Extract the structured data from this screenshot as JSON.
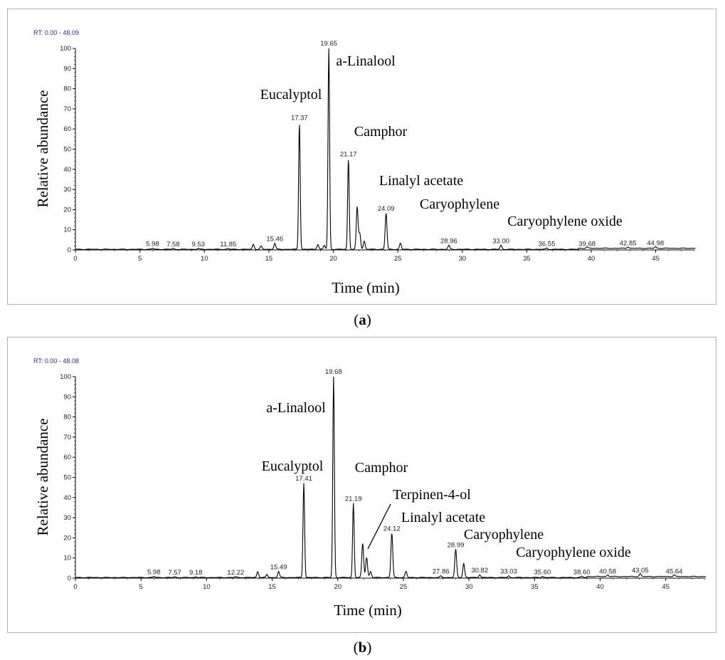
{
  "chart_data": [
    {
      "type": "line",
      "panel_label": "a",
      "range_label": "RT: 0.00 - 48.09",
      "xlabel": "Time (min)",
      "ylabel": "Relative abundance",
      "xlim": [
        0,
        48.09
      ],
      "ylim": [
        0,
        100
      ],
      "x_ticks": [
        0,
        5,
        10,
        15,
        20,
        25,
        30,
        35,
        40,
        45
      ],
      "y_ticks": [
        0,
        10,
        20,
        30,
        40,
        50,
        60,
        70,
        80,
        90,
        100
      ],
      "peaks": [
        {
          "rt": 5.98,
          "height": 0.5,
          "label": "5.98"
        },
        {
          "rt": 7.58,
          "height": 0.4,
          "label": "7.58"
        },
        {
          "rt": 9.53,
          "height": 0.4,
          "label": "9.53"
        },
        {
          "rt": 11.85,
          "height": 0.4,
          "label": "11.85"
        },
        {
          "rt": 13.8,
          "height": 2.5,
          "label": ""
        },
        {
          "rt": 14.4,
          "height": 1.5,
          "label": ""
        },
        {
          "rt": 15.46,
          "height": 3,
          "label": "15.46"
        },
        {
          "rt": 17.37,
          "height": 63,
          "label": "17.37"
        },
        {
          "rt": 18.8,
          "height": 2.5,
          "label": ""
        },
        {
          "rt": 19.3,
          "height": 2,
          "label": ""
        },
        {
          "rt": 19.65,
          "height": 100,
          "label": "19.65"
        },
        {
          "rt": 21.17,
          "height": 45,
          "label": "21.17"
        },
        {
          "rt": 21.85,
          "height": 21,
          "label": ""
        },
        {
          "rt": 22.05,
          "height": 8,
          "label": ""
        },
        {
          "rt": 22.4,
          "height": 4,
          "label": ""
        },
        {
          "rt": 24.09,
          "height": 18,
          "label": "24.09"
        },
        {
          "rt": 25.2,
          "height": 3,
          "label": ""
        },
        {
          "rt": 28.96,
          "height": 2,
          "label": "28.96"
        },
        {
          "rt": 33.0,
          "height": 2,
          "label": "33.00"
        },
        {
          "rt": 36.55,
          "height": 0.6,
          "label": "36.55"
        },
        {
          "rt": 39.68,
          "height": 0.6,
          "label": "39.68"
        },
        {
          "rt": 42.85,
          "height": 0.8,
          "label": "42.85"
        },
        {
          "rt": 44.98,
          "height": 0.8,
          "label": "44.98"
        }
      ],
      "annotations": [
        {
          "text": "Eucalyptol",
          "rt": 17.37
        },
        {
          "text": "a-Linalool",
          "rt": 19.65
        },
        {
          "text": "Camphor",
          "rt": 21.17
        },
        {
          "text": "Linalyl acetate",
          "rt": 24.09
        },
        {
          "text": "Caryophylene",
          "rt": 28.96
        },
        {
          "text": "Caryophylene oxide",
          "rt": 33.0
        }
      ]
    },
    {
      "type": "line",
      "panel_label": "b",
      "range_label": "RT: 0.00 - 48.08",
      "xlabel": "Time (min)",
      "ylabel": "Relative abundance",
      "xlim": [
        0,
        48.08
      ],
      "ylim": [
        0,
        100
      ],
      "x_ticks": [
        0,
        5,
        10,
        15,
        20,
        25,
        30,
        35,
        40,
        45
      ],
      "y_ticks": [
        0,
        10,
        20,
        30,
        40,
        50,
        60,
        70,
        80,
        90,
        100
      ],
      "peaks": [
        {
          "rt": 5.98,
          "height": 0.5,
          "label": "5.98"
        },
        {
          "rt": 7.57,
          "height": 0.4,
          "label": "7.57"
        },
        {
          "rt": 9.18,
          "height": 0.4,
          "label": "9.18"
        },
        {
          "rt": 12.22,
          "height": 0.4,
          "label": "12.22"
        },
        {
          "rt": 13.9,
          "height": 3,
          "label": ""
        },
        {
          "rt": 14.6,
          "height": 1.5,
          "label": ""
        },
        {
          "rt": 15.49,
          "height": 3,
          "label": "15.49"
        },
        {
          "rt": 17.41,
          "height": 47,
          "label": "17.41"
        },
        {
          "rt": 19.68,
          "height": 100,
          "label": "19.68"
        },
        {
          "rt": 21.19,
          "height": 37,
          "label": "21.19"
        },
        {
          "rt": 21.9,
          "height": 17,
          "label": ""
        },
        {
          "rt": 22.2,
          "height": 10,
          "label": ""
        },
        {
          "rt": 22.5,
          "height": 3,
          "label": ""
        },
        {
          "rt": 24.12,
          "height": 22,
          "label": "24.12"
        },
        {
          "rt": 25.2,
          "height": 3,
          "label": ""
        },
        {
          "rt": 27.86,
          "height": 0.8,
          "label": "27.86"
        },
        {
          "rt": 28.99,
          "height": 14,
          "label": "28.99"
        },
        {
          "rt": 29.6,
          "height": 7,
          "label": ""
        },
        {
          "rt": 30.82,
          "height": 1.5,
          "label": "30.82"
        },
        {
          "rt": 33.03,
          "height": 0.8,
          "label": "33.03"
        },
        {
          "rt": 35.6,
          "height": 0.6,
          "label": "35.60"
        },
        {
          "rt": 38.6,
          "height": 0.6,
          "label": "38.60"
        },
        {
          "rt": 40.58,
          "height": 0.8,
          "label": "40.58"
        },
        {
          "rt": 43.05,
          "height": 1.5,
          "label": "43.05"
        },
        {
          "rt": 45.64,
          "height": 0.8,
          "label": "45.64"
        }
      ],
      "annotations": [
        {
          "text": "a-Linalool",
          "rt": 19.68
        },
        {
          "text": "Eucalyptol",
          "rt": 17.41
        },
        {
          "text": "Camphor",
          "rt": 21.19
        },
        {
          "text": "Terpinen-4-ol",
          "rt": 21.9
        },
        {
          "text": "Linalyl acetate",
          "rt": 24.12
        },
        {
          "text": "Caryophylene",
          "rt": 28.99
        },
        {
          "text": "Caryophylene oxide",
          "rt": 33.03
        }
      ]
    }
  ]
}
